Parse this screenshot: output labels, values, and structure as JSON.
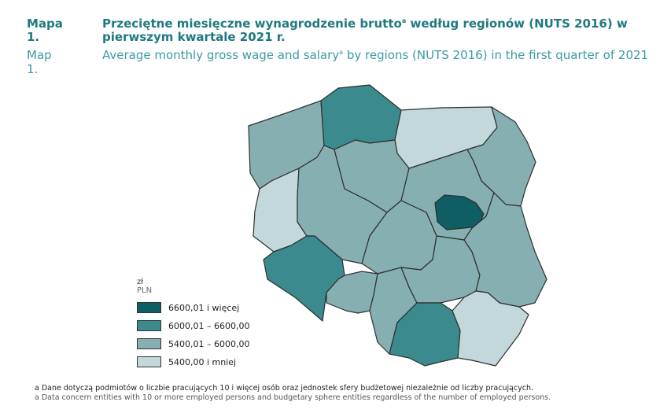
{
  "title": {
    "pl_label": "Mapa 1.",
    "pl_text": "Przeciętne miesięczne wynagrodzenie brutto",
    "pl_sup": "a",
    "pl_text_rest": " według regionów (NUTS 2016) w pierwszym kwartale 2021 r.",
    "en_label": "Map 1.",
    "en_text": "Average monthly gross wage and salary",
    "en_sup": "a",
    "en_text_rest": " by regions (NUTS 2016) in the first quarter of 2021"
  },
  "legend": {
    "unit_pl": "zł",
    "unit_en": "PLN",
    "items": [
      {
        "label": "6600,01 i więcej",
        "color": "#0e5e63"
      },
      {
        "label": "6000,01 – 6600,00",
        "color": "#3a8a8e"
      },
      {
        "label": "5400,01 – 6000,00",
        "color": "#86afb1"
      },
      {
        "label": "5400,00 i mniej",
        "color": "#c3d8da"
      }
    ]
  },
  "colors": {
    "border": "#2f2f2f"
  },
  "footnote": {
    "pl": "a Dane dotyczą podmiotów o liczbie pracujących 10 i więcej osób oraz jednostek sfery budżetowej niezależnie od liczby pracujących.",
    "en": "a Data concern entities with 10 or more employed persons and budgetary sphere entities regardless of the number of employed persons."
  },
  "regions": [
    {
      "id": "zachodniopomorskie",
      "class": 2
    },
    {
      "id": "pomorskie",
      "class": 1
    },
    {
      "id": "warminsko-mazurskie",
      "class": 3
    },
    {
      "id": "podlaskie",
      "class": 2
    },
    {
      "id": "lubuskie",
      "class": 3
    },
    {
      "id": "wielkopolskie",
      "class": 2
    },
    {
      "id": "kujawsko-pomorskie",
      "class": 2
    },
    {
      "id": "mazowiecki-regionalny",
      "class": 2
    },
    {
      "id": "warszawski-stoleczny",
      "class": 0
    },
    {
      "id": "lodzkie",
      "class": 2
    },
    {
      "id": "dolnoslaskie",
      "class": 1
    },
    {
      "id": "opolskie",
      "class": 2
    },
    {
      "id": "slaskie",
      "class": 2
    },
    {
      "id": "swietokrzyskie",
      "class": 2
    },
    {
      "id": "lubelskie",
      "class": 2
    },
    {
      "id": "malopolskie",
      "class": 1
    },
    {
      "id": "podkarpackie",
      "class": 3
    }
  ]
}
